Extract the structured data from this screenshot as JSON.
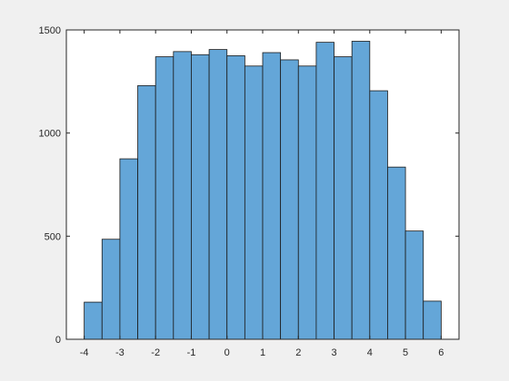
{
  "chart_data": {
    "type": "histogram",
    "title": "",
    "xlabel": "",
    "ylabel": "",
    "bin_edges": [
      -4,
      -3.5,
      -3,
      -2.5,
      -2,
      -1.5,
      -1,
      -0.5,
      0,
      0.5,
      1,
      1.5,
      2,
      2.5,
      3,
      3.5,
      4,
      4.5,
      5,
      5.5,
      6
    ],
    "counts": [
      180,
      485,
      875,
      1230,
      1370,
      1395,
      1380,
      1405,
      1375,
      1325,
      1390,
      1355,
      1325,
      1440,
      1370,
      1445,
      1205,
      835,
      525,
      185
    ],
    "xlim": [
      -4.5,
      6.5
    ],
    "ylim": [
      0,
      1500
    ],
    "xticks": [
      -4,
      -3,
      -2,
      -1,
      0,
      1,
      2,
      3,
      4,
      5,
      6
    ],
    "xtick_labels": [
      "-4",
      "-3",
      "-2",
      "-1",
      "0",
      "1",
      "2",
      "3",
      "4",
      "5",
      "6"
    ],
    "yticks": [
      0,
      500,
      1000,
      1500
    ],
    "ytick_labels": [
      "0",
      "500",
      "1000",
      "1500"
    ],
    "grid": false,
    "legend": "none",
    "colors": {
      "bar_fill": "#64a6d8",
      "bar_edge": "#1a1a1a",
      "axes_background": "#ffffff",
      "figure_background": "#f0f0f0",
      "axis_line": "#262626"
    }
  }
}
